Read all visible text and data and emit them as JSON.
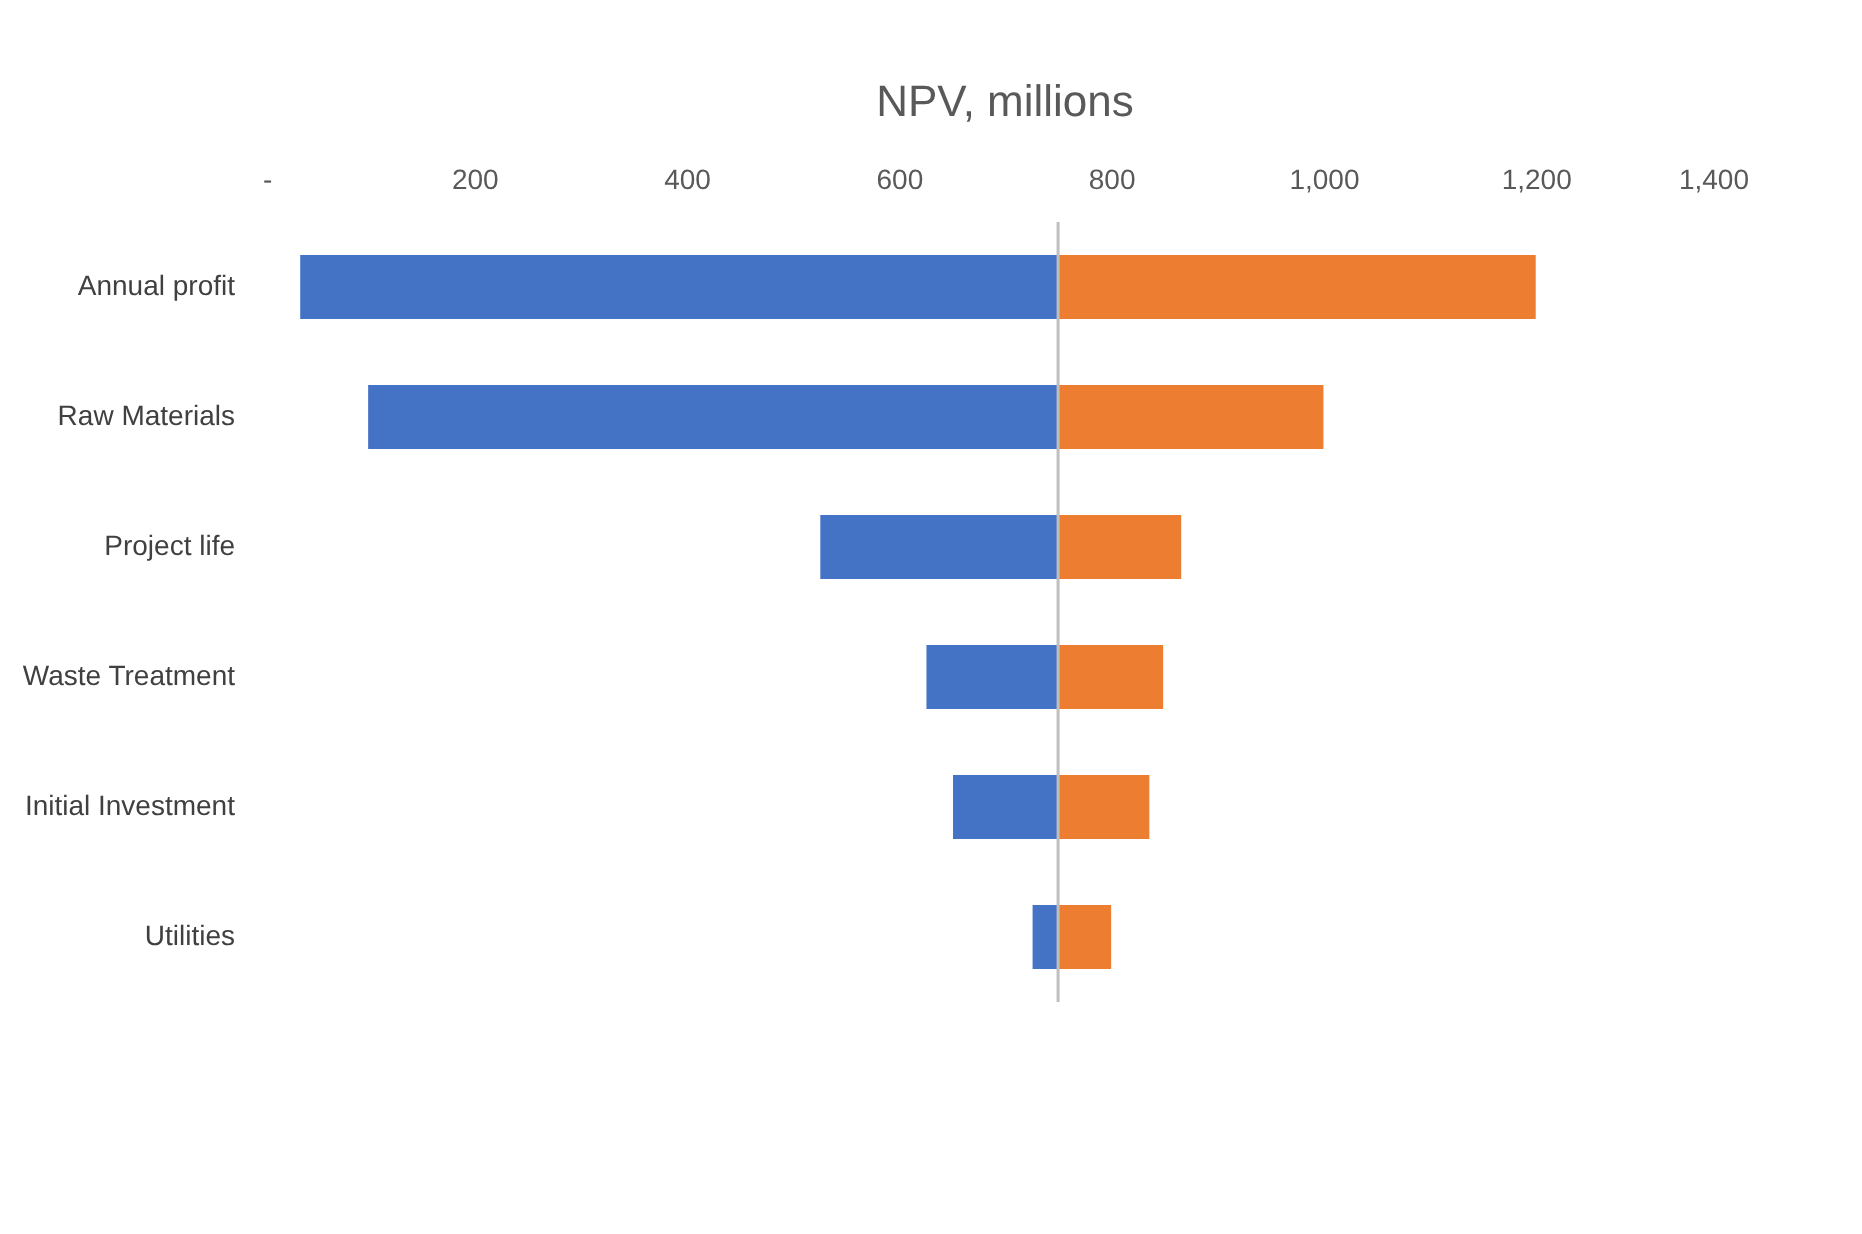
{
  "chart_data": {
    "type": "bar",
    "orientation": "horizontal",
    "title": "NPV, millions",
    "categories": [
      "Annual profit",
      "Raw Materials",
      "Project life",
      "Waste Treatment",
      "Initial Investment",
      "Utilities"
    ],
    "series": [
      {
        "color": "#4472c4",
        "base": [
          36,
          100,
          526,
          626,
          651,
          726
        ],
        "values": [
          714,
          650,
          224,
          124,
          99,
          24
        ]
      },
      {
        "color": "#ed7d31",
        "base": [
          750,
          750,
          750,
          750,
          750,
          750
        ],
        "values": [
          450,
          250,
          116,
          99,
          86,
          50
        ]
      }
    ],
    "xlim": [
      0,
      1400
    ],
    "xticks": [
      {
        "value": 0,
        "label": "-"
      },
      200,
      400,
      600,
      800,
      {
        "value": 1000,
        "label": "1,000"
      },
      {
        "value": 1200,
        "label": "1,200"
      },
      {
        "value": 1400,
        "label": "1,400"
      }
    ],
    "ref_lines": [
      {
        "axis": "x",
        "value": 750,
        "color": "#bfbfbf"
      }
    ],
    "grid": false
  }
}
